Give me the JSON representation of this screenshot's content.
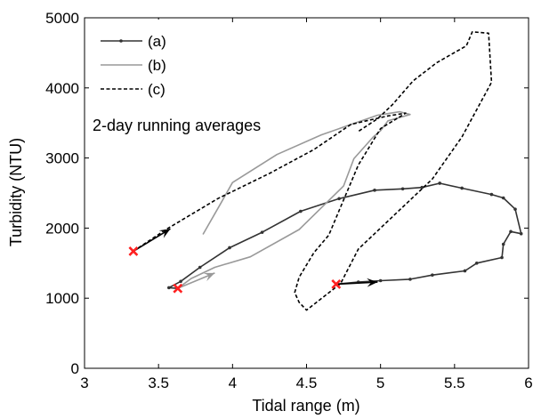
{
  "chart_data": {
    "type": "line",
    "xlabel": "Tidal range (m)",
    "ylabel": "Turbidity (NTU)",
    "xlim": [
      3,
      6
    ],
    "ylim": [
      0,
      5000
    ],
    "xticks": [
      "3",
      "3.5",
      "4",
      "4.5",
      "5",
      "5.5",
      "6"
    ],
    "yticks": [
      "0",
      "1000",
      "2000",
      "3000",
      "4000",
      "5000"
    ],
    "grid": false,
    "legend_position": "top-left",
    "annotation": "2-day running averages",
    "series": [
      {
        "name": "(a)",
        "color": "#333333",
        "style": "solid-with-dots",
        "points": [
          [
            4.7,
            1200
          ],
          [
            4.85,
            1230
          ],
          [
            5.0,
            1250
          ],
          [
            5.2,
            1270
          ],
          [
            5.35,
            1330
          ],
          [
            5.57,
            1390
          ],
          [
            5.65,
            1500
          ],
          [
            5.82,
            1580
          ],
          [
            5.83,
            1770
          ],
          [
            5.88,
            1950
          ],
          [
            5.95,
            1920
          ],
          [
            5.91,
            2270
          ],
          [
            5.83,
            2430
          ],
          [
            5.75,
            2480
          ],
          [
            5.55,
            2570
          ],
          [
            5.4,
            2640
          ],
          [
            5.28,
            2580
          ],
          [
            5.15,
            2560
          ],
          [
            4.96,
            2540
          ],
          [
            4.72,
            2420
          ],
          [
            4.46,
            2240
          ],
          [
            4.2,
            1940
          ],
          [
            3.98,
            1720
          ],
          [
            3.78,
            1440
          ],
          [
            3.65,
            1240
          ],
          [
            3.57,
            1150
          ],
          [
            3.63,
            1140
          ]
        ],
        "start_marker": [
          4.7,
          1200
        ],
        "arrow_to": [
          4.98,
          1230
        ]
      },
      {
        "name": "(b)",
        "color": "#999999",
        "style": "solid",
        "points": [
          [
            3.63,
            1140
          ],
          [
            3.72,
            1280
          ],
          [
            3.88,
            1440
          ],
          [
            4.12,
            1590
          ],
          [
            4.45,
            1980
          ],
          [
            4.75,
            2600
          ],
          [
            4.82,
            2990
          ],
          [
            4.95,
            3300
          ],
          [
            5.0,
            3390
          ],
          [
            5.05,
            3530
          ],
          [
            5.2,
            3620
          ],
          [
            5.13,
            3660
          ],
          [
            4.98,
            3610
          ],
          [
            4.6,
            3330
          ],
          [
            4.3,
            3050
          ],
          [
            4.0,
            2650
          ],
          [
            3.92,
            2350
          ],
          [
            3.8,
            1910
          ]
        ],
        "start_marker": [
          3.63,
          1140
        ],
        "arrow_to": [
          3.88,
          1360
        ]
      },
      {
        "name": "(c)",
        "color": "#000000",
        "style": "dashed",
        "points": [
          [
            3.33,
            1670
          ],
          [
            3.55,
            1980
          ],
          [
            3.9,
            2420
          ],
          [
            4.25,
            2780
          ],
          [
            4.55,
            3120
          ],
          [
            4.8,
            3480
          ],
          [
            5.05,
            3600
          ],
          [
            5.17,
            3640
          ],
          [
            5.0,
            3420
          ],
          [
            4.85,
            2900
          ],
          [
            4.72,
            2250
          ],
          [
            4.65,
            1900
          ],
          [
            4.55,
            1650
          ],
          [
            4.45,
            1300
          ],
          [
            4.42,
            1080
          ],
          [
            4.45,
            940
          ],
          [
            4.5,
            830
          ],
          [
            4.73,
            1210
          ],
          [
            4.85,
            1700
          ],
          [
            5.1,
            2200
          ],
          [
            5.35,
            2700
          ],
          [
            5.55,
            3300
          ],
          [
            5.75,
            4080
          ],
          [
            5.73,
            4780
          ],
          [
            5.62,
            4800
          ],
          [
            5.58,
            4600
          ],
          [
            5.38,
            4360
          ],
          [
            5.22,
            4100
          ],
          [
            5.08,
            3760
          ],
          [
            4.98,
            3560
          ],
          [
            4.85,
            3380
          ]
        ],
        "start_marker": [
          3.33,
          1670
        ],
        "arrow_to": [
          3.58,
          1990
        ]
      }
    ],
    "marker_color": "#ff2020"
  }
}
